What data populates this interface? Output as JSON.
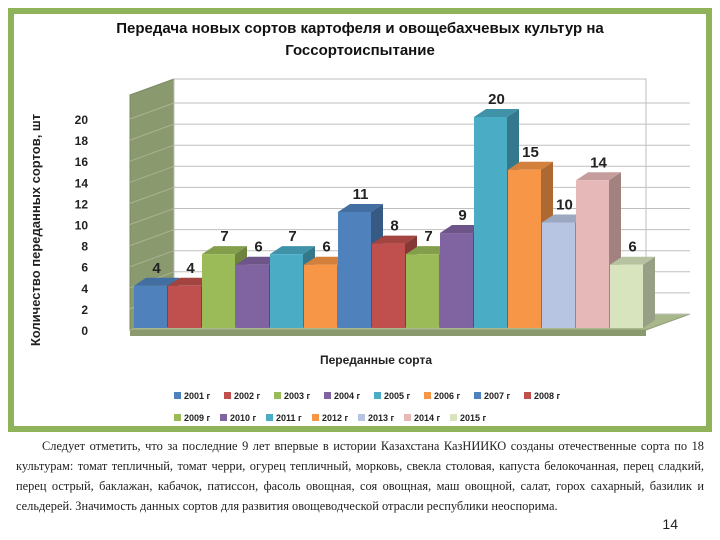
{
  "chart_data": {
    "type": "bar",
    "title": "Передача новых сортов картофеля и овощебахчевых культур на Госсортоиспытание",
    "title_lines": [
      "Передача новых сортов картофеля и овощебахчевых культур на",
      "Госсортоиспытание"
    ],
    "xlabel": "Переданные сорта",
    "ylabel": "Количество переданных сортов, шт",
    "ylim": [
      0,
      20
    ],
    "yticks": [
      "0",
      "2",
      "4",
      "6",
      "8",
      "10",
      "12",
      "14",
      "16",
      "18",
      "20"
    ],
    "grid": true,
    "legend_position": "bottom",
    "series": [
      {
        "name": "2001 г",
        "value": 4,
        "color": "#4f81bd"
      },
      {
        "name": "2002 г",
        "value": 4,
        "color": "#c0504d"
      },
      {
        "name": "2003 г",
        "value": 7,
        "color": "#9bbb59"
      },
      {
        "name": "2004 г",
        "value": 6,
        "color": "#8064a2"
      },
      {
        "name": "2005 г",
        "value": 7,
        "color": "#4bacc6"
      },
      {
        "name": "2006 г",
        "value": 6,
        "color": "#f79646"
      },
      {
        "name": "2007 г",
        "value": 11,
        "color": "#4f81bd"
      },
      {
        "name": "2008 г",
        "value": 8,
        "color": "#c0504d"
      },
      {
        "name": "2009 г",
        "value": 7,
        "color": "#9bbb59"
      },
      {
        "name": "2010 г",
        "value": 9,
        "color": "#8064a2"
      },
      {
        "name": "2011 г",
        "value": 20,
        "color": "#4bacc6"
      },
      {
        "name": "2012 г",
        "value": 15,
        "color": "#f79646"
      },
      {
        "name": "2013 г",
        "value": 10,
        "color": "#b8c5e2"
      },
      {
        "name": "2014 г",
        "value": 14,
        "color": "#e6b9b8"
      },
      {
        "name": "2015 г",
        "value": 6,
        "color": "#d7e4bd"
      }
    ]
  },
  "caption": {
    "text": "Следует отметить, что за последние 9 лет впервые в истории Казахстана КазНИИКО созданы отечественные сорта по 18 культурам: томат тепличный, томат черри, огурец тепличный, морковь, свекла столовая, капуста белокочанная, перец сладкий, перец острый, баклажан, кабачок, патиссон, фасоль овощная, соя овощная, маш овощной, салат, горох сахарный, базилик и сельдерей. Значимость данных сортов для развития овощеводческой отрасли республики неоспорима.",
    "page_number": "14"
  }
}
